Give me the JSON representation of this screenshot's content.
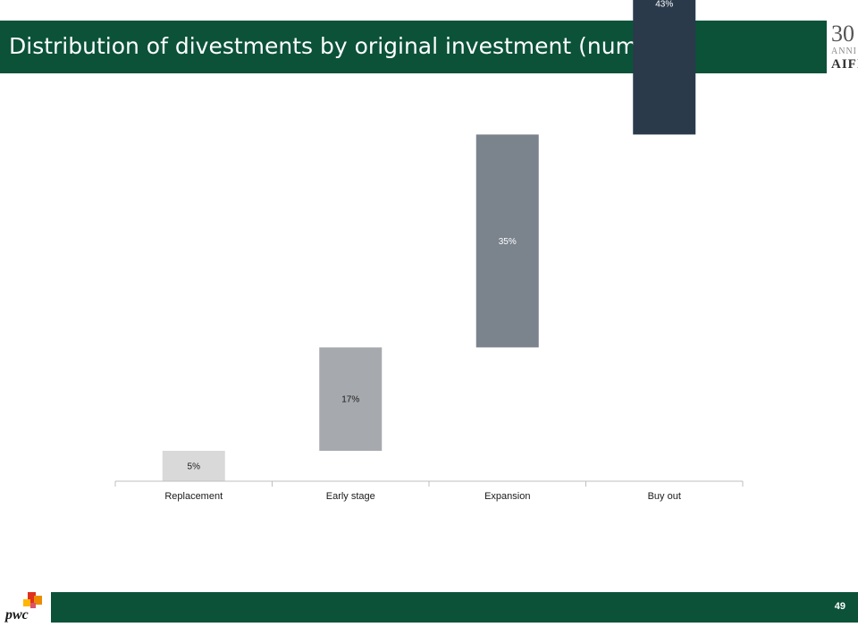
{
  "header": {
    "title": "Distribution of divestments by original investment (number)",
    "background_color": "#0b5239"
  },
  "logo": {
    "number": "30",
    "word": "ANNI",
    "brand": "AIFI"
  },
  "chart_data": {
    "type": "bar",
    "subtype": "waterfall",
    "title": "",
    "xlabel": "",
    "ylabel": "",
    "categories": [
      "Replacement",
      "Early stage",
      "Expansion",
      "Buy out"
    ],
    "values": [
      5,
      17,
      35,
      43
    ],
    "labels": [
      "5%",
      "17%",
      "35%",
      "43%"
    ],
    "ylim": [
      0,
      100
    ],
    "grid": false,
    "colors": [
      "#d9d9d9",
      "#a6a9ad",
      "#7b838d",
      "#2a3a4b"
    ],
    "label_colors": [
      "#1a1a1a",
      "#1a1a1a",
      "#ffffff",
      "#ffffff"
    ]
  },
  "footer": {
    "page_number": "49",
    "brand": "pwc",
    "background_color": "#0b5239"
  }
}
